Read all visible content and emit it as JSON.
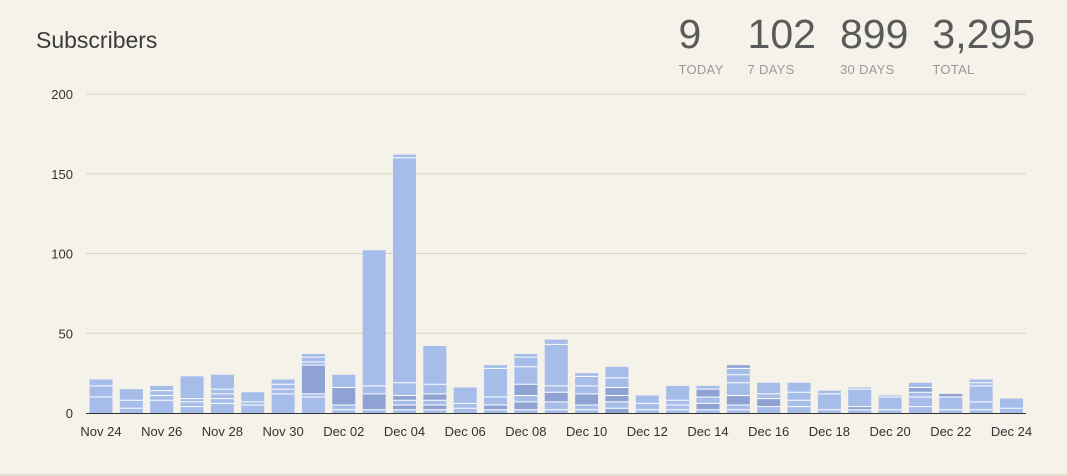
{
  "header": {
    "title": "Subscribers"
  },
  "stats": [
    {
      "value": "9",
      "label": "TODAY"
    },
    {
      "value": "102",
      "label": "7 DAYS"
    },
    {
      "value": "899",
      "label": "30 DAYS"
    },
    {
      "value": "3,295",
      "label": "TOTAL"
    }
  ],
  "colors": {
    "bar_light": "#a6bce9",
    "bar_dark": "#8ea3d3",
    "segment_line": "#ffffff",
    "grid": "#d8d4c8",
    "axis": "#333333"
  },
  "chart_data": {
    "type": "bar",
    "stacked": true,
    "title": "Subscribers",
    "ylim": [
      0,
      200
    ],
    "yticks": [
      0,
      50,
      100,
      150,
      200
    ],
    "grid": true,
    "categories": [
      "Nov 24",
      "Nov 25",
      "Nov 26",
      "Nov 27",
      "Nov 28",
      "Nov 29",
      "Nov 30",
      "Dec 01",
      "Dec 02",
      "Dec 03",
      "Dec 04",
      "Dec 05",
      "Dec 06",
      "Dec 07",
      "Dec 08",
      "Dec 09",
      "Dec 10",
      "Dec 11",
      "Dec 12",
      "Dec 13",
      "Dec 14",
      "Dec 15",
      "Dec 16",
      "Dec 17",
      "Dec 18",
      "Dec 19",
      "Dec 20",
      "Dec 21",
      "Dec 22",
      "Dec 23",
      "Dec 24"
    ],
    "xtick_labels": [
      "Nov 24",
      "Nov 26",
      "Nov 28",
      "Nov 30",
      "Dec 02",
      "Dec 04",
      "Dec 06",
      "Dec 08",
      "Dec 10",
      "Dec 12",
      "Dec 14",
      "Dec 16",
      "Dec 18",
      "Dec 20",
      "Dec 22",
      "Dec 24"
    ],
    "totals": [
      21,
      15,
      17,
      23,
      24,
      13,
      21,
      37,
      24,
      102,
      162,
      42,
      16,
      30,
      37,
      46,
      25,
      29,
      11,
      17,
      17,
      30,
      19,
      19,
      14,
      16,
      11,
      19,
      12,
      21,
      9
    ],
    "segments": [
      [
        {
          "v": 10,
          "dark": false
        },
        {
          "v": 7,
          "dark": false
        },
        {
          "v": 4,
          "dark": false
        }
      ],
      [
        {
          "v": 3,
          "dark": false
        },
        {
          "v": 5,
          "dark": false
        },
        {
          "v": 7,
          "dark": false
        }
      ],
      [
        {
          "v": 8,
          "dark": false
        },
        {
          "v": 3,
          "dark": false
        },
        {
          "v": 3,
          "dark": false
        },
        {
          "v": 3,
          "dark": false
        }
      ],
      [
        {
          "v": 4,
          "dark": false
        },
        {
          "v": 3,
          "dark": false
        },
        {
          "v": 2,
          "dark": false
        },
        {
          "v": 14,
          "dark": false
        }
      ],
      [
        {
          "v": 6,
          "dark": false
        },
        {
          "v": 3,
          "dark": false
        },
        {
          "v": 3,
          "dark": false
        },
        {
          "v": 3,
          "dark": false
        },
        {
          "v": 9,
          "dark": false
        }
      ],
      [
        {
          "v": 5,
          "dark": false
        },
        {
          "v": 2,
          "dark": false
        },
        {
          "v": 6,
          "dark": false
        }
      ],
      [
        {
          "v": 12,
          "dark": false
        },
        {
          "v": 3,
          "dark": false
        },
        {
          "v": 3,
          "dark": false
        },
        {
          "v": 3,
          "dark": false
        }
      ],
      [
        {
          "v": 10,
          "dark": false
        },
        {
          "v": 2,
          "dark": false
        },
        {
          "v": 18,
          "dark": true
        },
        {
          "v": 2,
          "dark": false
        },
        {
          "v": 3,
          "dark": false
        },
        {
          "v": 2,
          "dark": false
        }
      ],
      [
        {
          "v": 2,
          "dark": false
        },
        {
          "v": 3,
          "dark": false
        },
        {
          "v": 11,
          "dark": true
        },
        {
          "v": 8,
          "dark": false
        }
      ],
      [
        {
          "v": 2,
          "dark": false
        },
        {
          "v": 10,
          "dark": true
        },
        {
          "v": 5,
          "dark": false
        },
        {
          "v": 85,
          "dark": false
        }
      ],
      [
        {
          "v": 2,
          "dark": false
        },
        {
          "v": 3,
          "dark": true
        },
        {
          "v": 3,
          "dark": false
        },
        {
          "v": 3,
          "dark": true
        },
        {
          "v": 8,
          "dark": false
        },
        {
          "v": 141,
          "dark": false
        },
        {
          "v": 2,
          "dark": false
        }
      ],
      [
        {
          "v": 2,
          "dark": false
        },
        {
          "v": 3,
          "dark": true
        },
        {
          "v": 3,
          "dark": false
        },
        {
          "v": 4,
          "dark": true
        },
        {
          "v": 6,
          "dark": false
        },
        {
          "v": 24,
          "dark": false
        }
      ],
      [
        {
          "v": 3,
          "dark": false
        },
        {
          "v": 3,
          "dark": false
        },
        {
          "v": 10,
          "dark": false
        }
      ],
      [
        {
          "v": 2,
          "dark": false
        },
        {
          "v": 3,
          "dark": true
        },
        {
          "v": 5,
          "dark": false
        },
        {
          "v": 18,
          "dark": false
        },
        {
          "v": 2,
          "dark": false
        }
      ],
      [
        {
          "v": 2,
          "dark": false
        },
        {
          "v": 5,
          "dark": true
        },
        {
          "v": 4,
          "dark": false
        },
        {
          "v": 7,
          "dark": true
        },
        {
          "v": 11,
          "dark": false
        },
        {
          "v": 6,
          "dark": false
        },
        {
          "v": 2,
          "dark": false
        }
      ],
      [
        {
          "v": 2,
          "dark": false
        },
        {
          "v": 5,
          "dark": false
        },
        {
          "v": 6,
          "dark": true
        },
        {
          "v": 4,
          "dark": false
        },
        {
          "v": 26,
          "dark": false
        },
        {
          "v": 3,
          "dark": false
        }
      ],
      [
        {
          "v": 2,
          "dark": false
        },
        {
          "v": 3,
          "dark": false
        },
        {
          "v": 7,
          "dark": true
        },
        {
          "v": 5,
          "dark": false
        },
        {
          "v": 6,
          "dark": false
        },
        {
          "v": 2,
          "dark": false
        }
      ],
      [
        {
          "v": 3,
          "dark": true
        },
        {
          "v": 4,
          "dark": false
        },
        {
          "v": 4,
          "dark": true
        },
        {
          "v": 5,
          "dark": true
        },
        {
          "v": 6,
          "dark": false
        },
        {
          "v": 7,
          "dark": false
        }
      ],
      [
        {
          "v": 2,
          "dark": false
        },
        {
          "v": 4,
          "dark": false
        },
        {
          "v": 5,
          "dark": false
        }
      ],
      [
        {
          "v": 2,
          "dark": false
        },
        {
          "v": 3,
          "dark": false
        },
        {
          "v": 3,
          "dark": false
        },
        {
          "v": 9,
          "dark": false
        }
      ],
      [
        {
          "v": 2,
          "dark": false
        },
        {
          "v": 4,
          "dark": true
        },
        {
          "v": 4,
          "dark": false
        },
        {
          "v": 5,
          "dark": true
        },
        {
          "v": 2,
          "dark": false
        }
      ],
      [
        {
          "v": 2,
          "dark": false
        },
        {
          "v": 3,
          "dark": false
        },
        {
          "v": 6,
          "dark": true
        },
        {
          "v": 8,
          "dark": false
        },
        {
          "v": 5,
          "dark": false
        },
        {
          "v": 4,
          "dark": false
        },
        {
          "v": 2,
          "dark": true
        }
      ],
      [
        {
          "v": 4,
          "dark": false
        },
        {
          "v": 5,
          "dark": true
        },
        {
          "v": 3,
          "dark": false
        },
        {
          "v": 7,
          "dark": false
        }
      ],
      [
        {
          "v": 4,
          "dark": false
        },
        {
          "v": 4,
          "dark": false
        },
        {
          "v": 5,
          "dark": false
        },
        {
          "v": 6,
          "dark": false
        }
      ],
      [
        {
          "v": 2,
          "dark": false
        },
        {
          "v": 10,
          "dark": false
        },
        {
          "v": 2,
          "dark": false
        }
      ],
      [
        {
          "v": 2,
          "dark": false
        },
        {
          "v": 2,
          "dark": true
        },
        {
          "v": 11,
          "dark": false
        },
        {
          "v": 1,
          "dark": false
        }
      ],
      [
        {
          "v": 2,
          "dark": false
        },
        {
          "v": 8,
          "dark": false
        },
        {
          "v": 1,
          "dark": false
        }
      ],
      [
        {
          "v": 4,
          "dark": false
        },
        {
          "v": 6,
          "dark": false
        },
        {
          "v": 3,
          "dark": false
        },
        {
          "v": 3,
          "dark": true
        },
        {
          "v": 3,
          "dark": false
        }
      ],
      [
        {
          "v": 2,
          "dark": false
        },
        {
          "v": 8,
          "dark": false
        },
        {
          "v": 2,
          "dark": true
        }
      ],
      [
        {
          "v": 2,
          "dark": false
        },
        {
          "v": 5,
          "dark": false
        },
        {
          "v": 10,
          "dark": false
        },
        {
          "v": 2,
          "dark": false
        },
        {
          "v": 2,
          "dark": false
        }
      ],
      [
        {
          "v": 3,
          "dark": false
        },
        {
          "v": 6,
          "dark": false
        }
      ]
    ]
  }
}
